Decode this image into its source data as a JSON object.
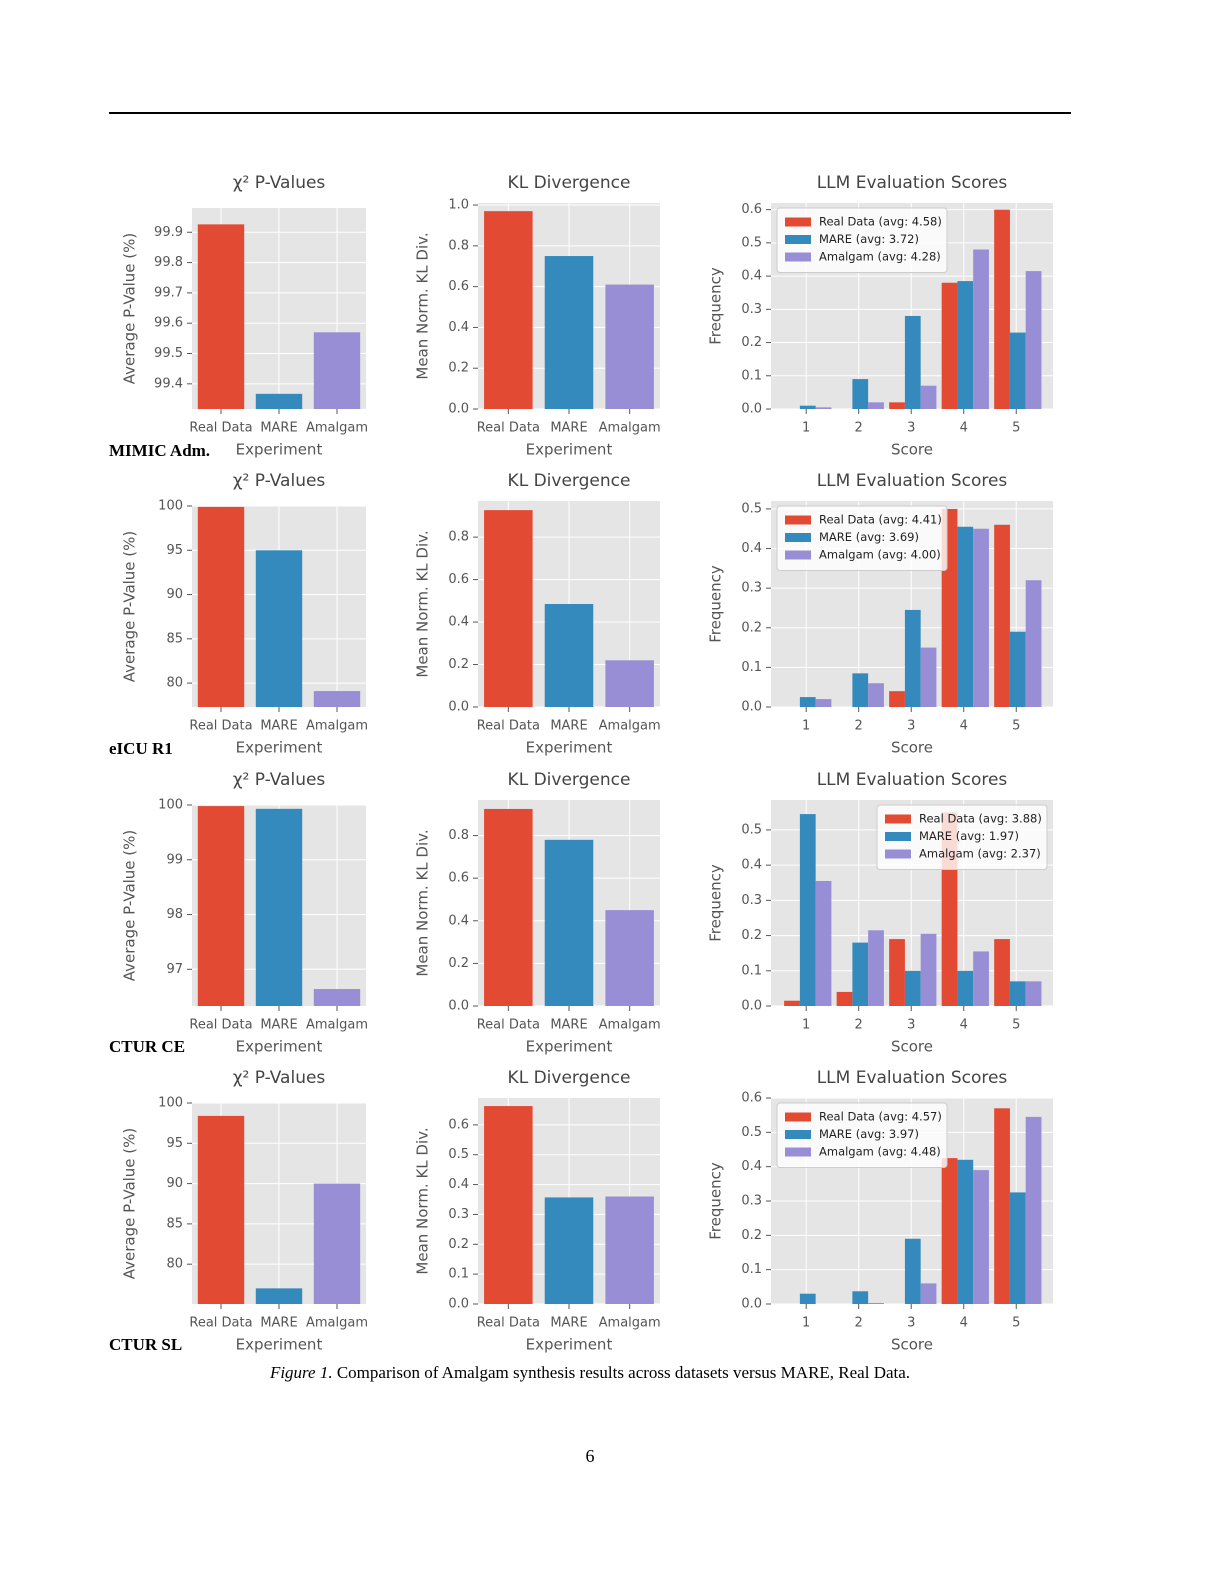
{
  "chart_data": [
    {
      "type": "bar",
      "title": "χ² P-Values",
      "xlabel": "Experiment",
      "ylabel": "Average P-Value (%)",
      "categories": [
        "Real Data",
        "MARE",
        "Amalgam"
      ],
      "values": [
        99.926,
        99.367,
        99.57
      ],
      "colors": [
        "#E24A33",
        "#348ABD",
        "#988ED5"
      ],
      "ylim": [
        99.317,
        99.98
      ],
      "yticks": [
        99.4,
        99.5,
        99.6,
        99.7,
        99.8,
        99.9
      ],
      "grid": true
    },
    {
      "type": "bar",
      "title": "KL Divergence",
      "xlabel": "Experiment",
      "ylabel": "Mean Norm. KL Div.",
      "categories": [
        "Real Data",
        "MARE",
        "Amalgam"
      ],
      "values": [
        0.97,
        0.75,
        0.61
      ],
      "colors": [
        "#E24A33",
        "#348ABD",
        "#988ED5"
      ],
      "ylim": [
        0,
        1.01
      ],
      "yticks": [
        {
          "value": 0,
          "label": "0.0"
        },
        0.2,
        0.4,
        0.6,
        0.8,
        {
          "value": 1,
          "label": "1.0"
        }
      ],
      "grid": true
    },
    {
      "type": "grouped_bar",
      "title": "LLM Evaluation Scores",
      "xlabel": "Score",
      "ylabel": "Frequency",
      "x": [
        1,
        2,
        3,
        4,
        5
      ],
      "xlim": [
        0.33,
        5.7
      ],
      "xticks": [
        1,
        2,
        3,
        4,
        5
      ],
      "ylim": [
        0,
        0.62
      ],
      "yticks": [
        {
          "value": 0,
          "label": "0.0"
        },
        0.1,
        0.2,
        0.3,
        0.4,
        0.5,
        0.6
      ],
      "grid": true,
      "legend": "upper left",
      "series": [
        {
          "name": "Real Data (avg: 4.58)",
          "color": "#E24A33",
          "values": [
            0,
            0,
            0.02,
            0.38,
            0.6
          ]
        },
        {
          "name": "MARE (avg: 3.72)",
          "color": "#348ABD",
          "values": [
            0.01,
            0.09,
            0.28,
            0.385,
            0.23
          ]
        },
        {
          "name": "Amalgam (avg: 4.28)",
          "color": "#988ED5",
          "values": [
            0.005,
            0.02,
            0.07,
            0.48,
            0.415
          ]
        }
      ]
    },
    {
      "type": "bar",
      "title": "χ² P-Values",
      "xlabel": "Experiment",
      "ylabel": "Average P-Value (%)",
      "categories": [
        "Real Data",
        "MARE",
        "Amalgam"
      ],
      "values": [
        99.9,
        95.0,
        79.1
      ],
      "colors": [
        "#E24A33",
        "#348ABD",
        "#988ED5"
      ],
      "ylim": [
        77.3,
        100
      ],
      "yticks": [
        80,
        85,
        90,
        95,
        100
      ],
      "grid": true
    },
    {
      "type": "bar",
      "title": "KL Divergence",
      "xlabel": "Experiment",
      "ylabel": "Mean Norm. KL Div.",
      "categories": [
        "Real Data",
        "MARE",
        "Amalgam"
      ],
      "values": [
        0.927,
        0.485,
        0.22
      ],
      "colors": [
        "#E24A33",
        "#348ABD",
        "#988ED5"
      ],
      "ylim": [
        0,
        0.97
      ],
      "yticks": [
        {
          "value": 0,
          "label": "0.0"
        },
        0.2,
        0.4,
        0.6,
        0.8
      ],
      "grid": true
    },
    {
      "type": "grouped_bar",
      "title": "LLM Evaluation Scores",
      "xlabel": "Score",
      "ylabel": "Frequency",
      "x": [
        1,
        2,
        3,
        4,
        5
      ],
      "xlim": [
        0.33,
        5.7
      ],
      "xticks": [
        1,
        2,
        3,
        4,
        5
      ],
      "ylim": [
        0,
        0.52
      ],
      "yticks": [
        {
          "value": 0,
          "label": "0.0"
        },
        0.1,
        0.2,
        0.3,
        0.4,
        0.5
      ],
      "grid": true,
      "legend": "upper left",
      "series": [
        {
          "name": "Real Data (avg: 4.41)",
          "color": "#E24A33",
          "values": [
            0,
            0,
            0.04,
            0.5,
            0.46
          ]
        },
        {
          "name": "MARE (avg: 3.69)",
          "color": "#348ABD",
          "values": [
            0.025,
            0.085,
            0.245,
            0.455,
            0.19
          ]
        },
        {
          "name": "Amalgam (avg: 4.00)",
          "color": "#988ED5",
          "values": [
            0.02,
            0.06,
            0.15,
            0.45,
            0.32
          ]
        }
      ]
    },
    {
      "type": "bar",
      "title": "χ² P-Values",
      "xlabel": "Experiment",
      "ylabel": "Average P-Value (%)",
      "categories": [
        "Real Data",
        "MARE",
        "Amalgam"
      ],
      "values": [
        99.98,
        99.93,
        96.64
      ],
      "colors": [
        "#E24A33",
        "#348ABD",
        "#988ED5"
      ],
      "ylim": [
        96.33,
        100
      ],
      "yticks": [
        97,
        98,
        99,
        100
      ],
      "grid": true
    },
    {
      "type": "bar",
      "title": "KL Divergence",
      "xlabel": "Experiment",
      "ylabel": "Mean Norm. KL Div.",
      "categories": [
        "Real Data",
        "MARE",
        "Amalgam"
      ],
      "values": [
        0.925,
        0.78,
        0.45
      ],
      "colors": [
        "#E24A33",
        "#348ABD",
        "#988ED5"
      ],
      "ylim": [
        0,
        0.967
      ],
      "yticks": [
        {
          "value": 0,
          "label": "0.0"
        },
        0.2,
        0.4,
        0.6,
        0.8
      ],
      "grid": true
    },
    {
      "type": "grouped_bar",
      "title": "LLM Evaluation Scores",
      "xlabel": "Score",
      "ylabel": "Frequency",
      "x": [
        1,
        2,
        3,
        4,
        5
      ],
      "xlim": [
        0.33,
        5.7
      ],
      "xticks": [
        1,
        2,
        3,
        4,
        5
      ],
      "ylim": [
        0,
        0.585
      ],
      "yticks": [
        {
          "value": 0,
          "label": "0.0"
        },
        0.1,
        0.2,
        0.3,
        0.4,
        0.5
      ],
      "grid": true,
      "legend": "upper right",
      "series": [
        {
          "name": "Real Data (avg: 3.88)",
          "color": "#E24A33",
          "values": [
            0.015,
            0.04,
            0.19,
            0.55,
            0.19
          ]
        },
        {
          "name": "MARE (avg: 1.97)",
          "color": "#348ABD",
          "values": [
            0.545,
            0.18,
            0.1,
            0.1,
            0.07
          ]
        },
        {
          "name": "Amalgam (avg: 2.37)",
          "color": "#988ED5",
          "values": [
            0.355,
            0.215,
            0.205,
            0.155,
            0.07
          ]
        }
      ]
    },
    {
      "type": "bar",
      "title": "χ² P-Values",
      "xlabel": "Experiment",
      "ylabel": "Average P-Value (%)",
      "categories": [
        "Real Data",
        "MARE",
        "Amalgam"
      ],
      "values": [
        98.4,
        77.0,
        90.0
      ],
      "colors": [
        "#E24A33",
        "#348ABD",
        "#988ED5"
      ],
      "ylim": [
        75.06,
        100
      ],
      "yticks": [
        80,
        85,
        90,
        95,
        100
      ],
      "grid": true
    },
    {
      "type": "bar",
      "title": "KL Divergence",
      "xlabel": "Experiment",
      "ylabel": "Mean Norm. KL Div.",
      "categories": [
        "Real Data",
        "MARE",
        "Amalgam"
      ],
      "values": [
        0.663,
        0.357,
        0.36
      ],
      "colors": [
        "#E24A33",
        "#348ABD",
        "#988ED5"
      ],
      "ylim": [
        0,
        0.69
      ],
      "yticks": [
        {
          "value": 0,
          "label": "0.0"
        },
        0.1,
        0.2,
        0.3,
        0.4,
        0.5,
        0.6
      ],
      "grid": true
    },
    {
      "type": "grouped_bar",
      "title": "LLM Evaluation Scores",
      "xlabel": "Score",
      "ylabel": "Frequency",
      "x": [
        1,
        2,
        3,
        4,
        5
      ],
      "xlim": [
        0.33,
        5.7
      ],
      "xticks": [
        1,
        2,
        3,
        4,
        5
      ],
      "ylim": [
        0,
        0.6
      ],
      "yticks": [
        {
          "value": 0,
          "label": "0.0"
        },
        0.1,
        0.2,
        0.3,
        0.4,
        0.5,
        0.6
      ],
      "grid": true,
      "legend": "upper left",
      "series": [
        {
          "name": "Real Data (avg: 4.57)",
          "color": "#E24A33",
          "values": [
            0,
            0,
            0,
            0.425,
            0.57
          ]
        },
        {
          "name": "MARE (avg: 3.97)",
          "color": "#348ABD",
          "values": [
            0.03,
            0.037,
            0.19,
            0.42,
            0.325
          ]
        },
        {
          "name": "Amalgam (avg: 4.48)",
          "color": "#988ED5",
          "values": [
            0,
            0.003,
            0.06,
            0.39,
            0.545
          ]
        }
      ]
    }
  ],
  "row_labels": [
    "MIMIC Adm.",
    "eICU R1",
    "CTUR CE",
    "CTUR SL"
  ],
  "caption": {
    "label": "Figure 1.",
    "text": "Comparison of Amalgam synthesis results across datasets versus MARE, Real Data."
  },
  "page_number": "6"
}
